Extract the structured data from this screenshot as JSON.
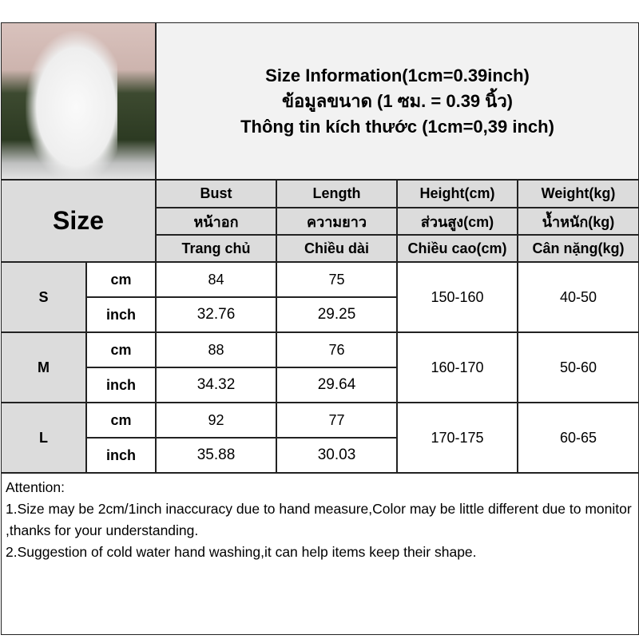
{
  "title": {
    "line1": "Size Information(1cm=0.39inch)",
    "line2": "ข้อมูลขนาด (1 ซม. = 0.39 นิ้ว)",
    "line3": "Thông tin kích thước (1cm=0,39 inch)"
  },
  "size_label": "Size",
  "columns": [
    {
      "en": "Bust",
      "th": "หน้าอก",
      "vi": "Trang chủ"
    },
    {
      "en": "Length",
      "th": "ความยาว",
      "vi": "Chiều dài"
    },
    {
      "en": "Height(cm)",
      "th": "ส่วนสูง(cm)",
      "vi": "Chiều cao(cm)"
    },
    {
      "en": "Weight(kg)",
      "th": "น้ำหนัก(kg)",
      "vi": "Cân nặng(kg)"
    }
  ],
  "rows": [
    {
      "size": "S",
      "cm_label": "cm",
      "inch_label": "inch",
      "bust_cm": "84",
      "length_cm": "75",
      "bust_in": "32.76",
      "length_in": "29.25",
      "height": "150-160",
      "weight": "40-50"
    },
    {
      "size": "M",
      "cm_label": "cm",
      "inch_label": "inch",
      "bust_cm": "88",
      "length_cm": "76",
      "bust_in": "34.32",
      "length_in": "29.64",
      "height": "160-170",
      "weight": "50-60"
    },
    {
      "size": "L",
      "cm_label": "cm",
      "inch_label": "inch",
      "bust_cm": "92",
      "length_cm": "77",
      "bust_in": "35.88",
      "length_in": "30.03",
      "height": "170-175",
      "weight": "60-65"
    }
  ],
  "notes": {
    "heading": "Attention:",
    "line1": "1.Size may be 2cm/1inch inaccuracy due to hand measure,Color may be little different due to monitor ,thanks for your understanding.",
    "line2": "2.Suggestion of cold water hand washing,it can help items keep their shape."
  }
}
